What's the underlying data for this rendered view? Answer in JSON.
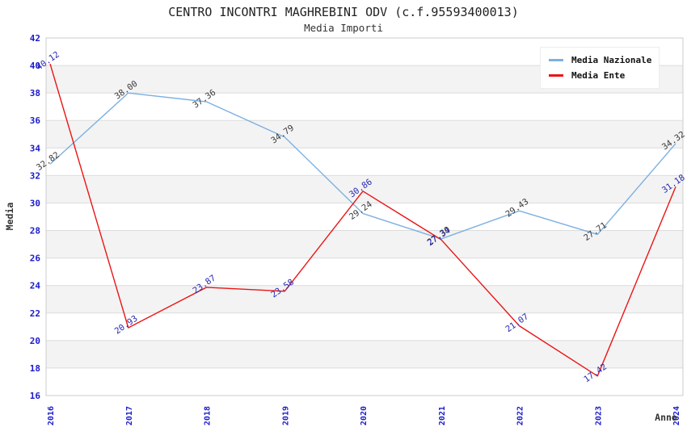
{
  "chart_data": {
    "type": "line",
    "title": "CENTRO INCONTRI MAGHREBINI ODV (c.f.95593400013)",
    "subtitle": "Media Importi",
    "xlabel": "Anno",
    "ylabel": "Media",
    "x": [
      2016,
      2017,
      2018,
      2019,
      2020,
      2021,
      2022,
      2023,
      2024
    ],
    "ylim": [
      16,
      42
    ],
    "ytick_step": 2,
    "grid": "horizontal-bands",
    "legend_position": "top-right",
    "series": [
      {
        "name": "Media Nazionale",
        "color": "#7cb0e2",
        "label_color": "#3a3a3a",
        "values": [
          32.82,
          38.0,
          37.36,
          34.79,
          29.24,
          27.39,
          29.43,
          27.71,
          34.32
        ]
      },
      {
        "name": "Media Ente",
        "color": "#ea1515",
        "label_color": "#2727b2",
        "values": [
          40.12,
          20.93,
          23.87,
          23.58,
          30.86,
          27.34,
          21.07,
          17.42,
          31.18
        ]
      }
    ],
    "colors": {
      "tick_label": "#1a1acc",
      "axis_label": "#333333",
      "grid_line": "#dcdcdc",
      "band_fill": "#f3f3f3",
      "plot_border": "#cccccc",
      "title": "#222222"
    }
  }
}
